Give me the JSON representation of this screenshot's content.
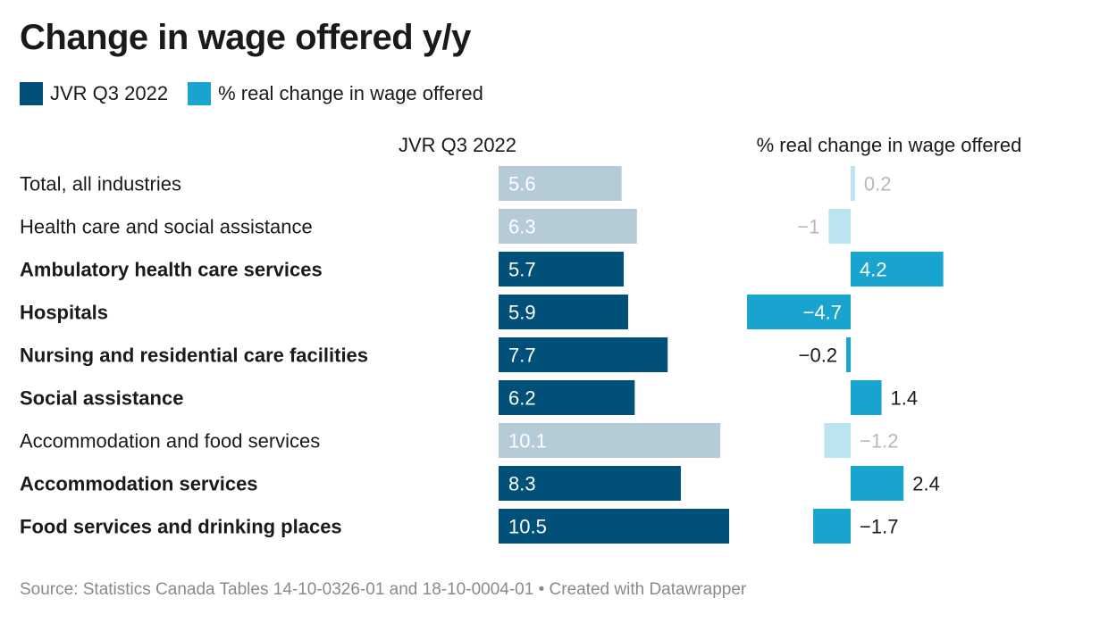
{
  "chart_data": {
    "type": "bar",
    "title": "Change in wage offered y/y",
    "legend": {
      "placement": "top-left",
      "entries": [
        {
          "label": "JVR Q3 2022",
          "color": "#00507a"
        },
        {
          "label": "% real change in wage offered",
          "color": "#19a4cf"
        }
      ]
    },
    "categories": [
      {
        "label": "Total, all industries",
        "bold": false
      },
      {
        "label": "Health care and social assistance",
        "bold": false
      },
      {
        "label": "Ambulatory health care services",
        "bold": true
      },
      {
        "label": "Hospitals",
        "bold": true
      },
      {
        "label": "Nursing and residential care facilities",
        "bold": true
      },
      {
        "label": "Social assistance",
        "bold": true
      },
      {
        "label": "Accommodation and food services",
        "bold": false
      },
      {
        "label": "Accommodation services",
        "bold": true
      },
      {
        "label": "Food services and drinking places",
        "bold": true
      }
    ],
    "series": [
      {
        "name": "JVR Q3 2022",
        "column_header": "JVR Q3 2022",
        "values": [
          5.6,
          6.3,
          5.7,
          5.9,
          7.7,
          6.2,
          10.1,
          8.3,
          10.5
        ],
        "labels": [
          "5.6",
          "6.3",
          "5.7",
          "5.9",
          "7.7",
          "6.2",
          "10.1",
          "8.3",
          "10.5"
        ],
        "color": "#00507a",
        "muted_color": "#b5cbd6",
        "xlim": [
          0,
          10.5
        ]
      },
      {
        "name": "% real change in wage offered",
        "column_header": "% real change in wage offered",
        "values": [
          0.2,
          -1,
          4.2,
          -4.7,
          -0.2,
          1.4,
          -1.2,
          2.4,
          -1.7
        ],
        "labels": [
          "0.2",
          "−1",
          "4.2",
          "−4.7",
          "−0.2",
          "1.4",
          "−1.2",
          "2.4",
          "−1.7"
        ],
        "color": "#19a4cf",
        "muted_color": "#bce3f0",
        "xlim": [
          -4.7,
          4.2
        ]
      }
    ],
    "grid": false
  },
  "source": "Source: Statistics Canada Tables 14-10-0326-01 and 18-10-0004-01 • Created with Datawrapper"
}
